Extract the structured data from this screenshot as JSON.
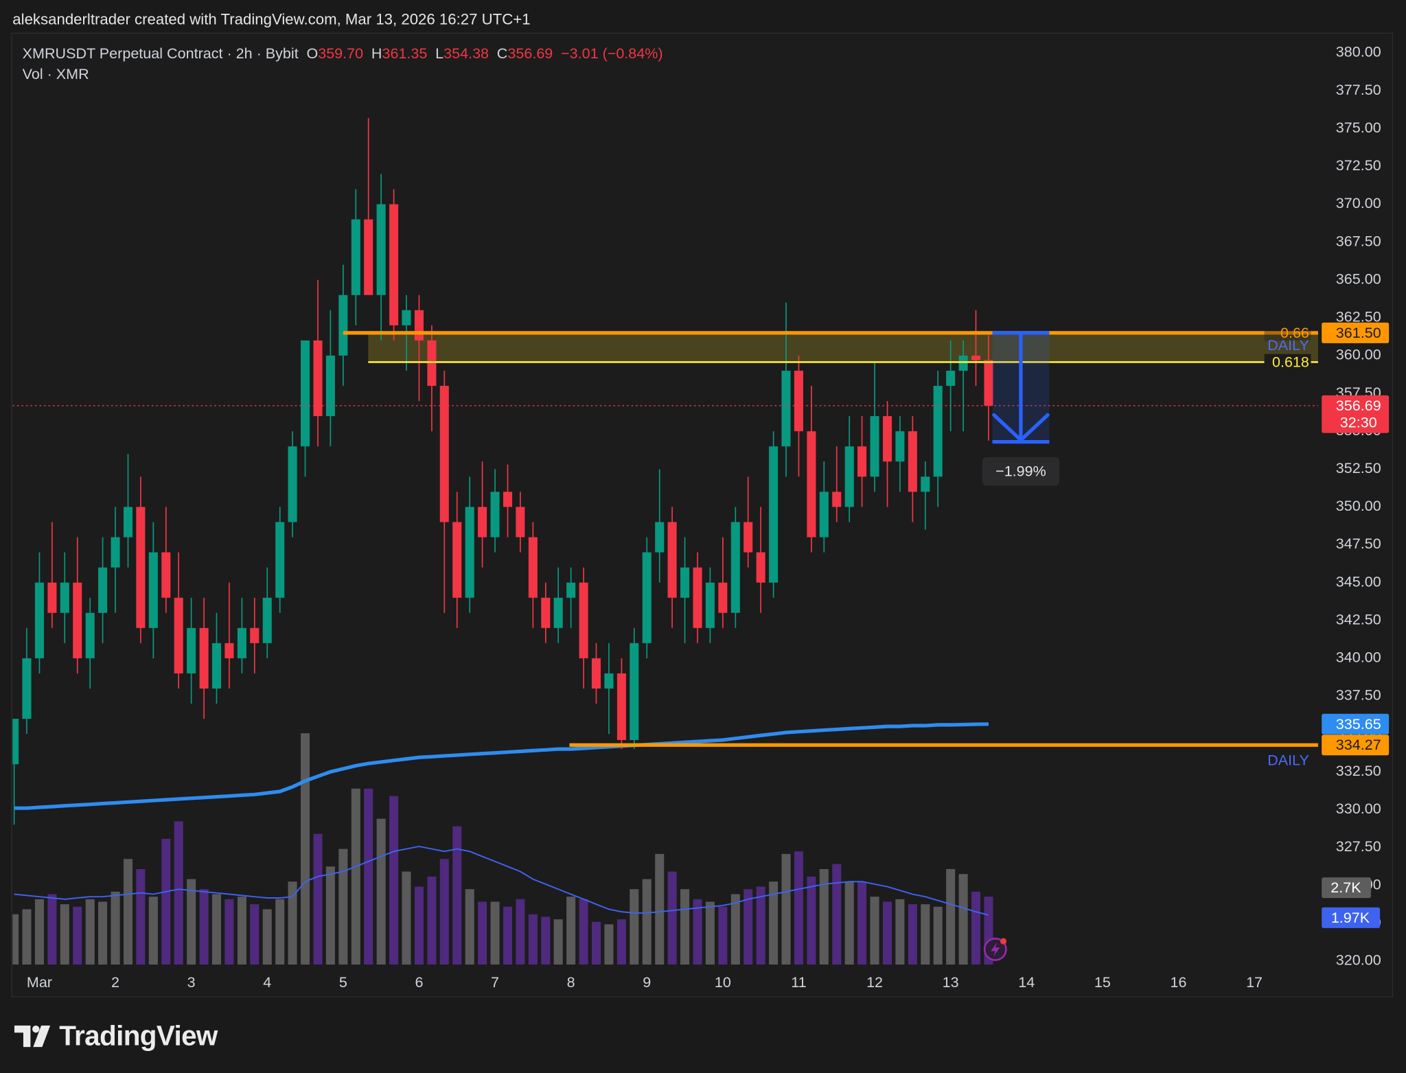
{
  "header": "aleksanderltrader created with TradingView.com, Mar 13, 2026 16:27 UTC+1",
  "footer": "TradingView",
  "chart_data": {
    "type": "candlestick",
    "legend": {
      "symbol": "XMRUSDT Perpetual Contract · 2h · Bybit",
      "items": [
        {
          "key": "O",
          "value": {
            "value": 359.7,
            "label": "359.70"
          }
        },
        {
          "key": "H",
          "value": {
            "value": 361.35,
            "label": "361.35"
          }
        },
        {
          "key": "L",
          "value": {
            "value": 354.38,
            "label": "354.38"
          }
        },
        {
          "key": "C",
          "value": {
            "value": 356.69,
            "label": "356.69"
          }
        }
      ],
      "change": "−3.01 (−0.84%)",
      "volume_title": "Vol · XMR"
    },
    "xlim": [
      0.646,
      17.84
    ],
    "ylim": [
      320,
      380
    ],
    "grid": false,
    "xticks": [
      {
        "value": 1,
        "label": "Mar"
      },
      2,
      3,
      4,
      5,
      6,
      7,
      8,
      9,
      10,
      11,
      12,
      13,
      14,
      15,
      16,
      17
    ],
    "yticks": [
      {
        "value": 320,
        "label": "320.00"
      },
      {
        "value": 322.5,
        "label": "322.50"
      },
      {
        "value": 325,
        "label": "325.00"
      },
      {
        "value": 327.5,
        "label": "327.50"
      },
      {
        "value": 330,
        "label": "330.00"
      },
      {
        "value": 332.5,
        "label": "332.50"
      },
      {
        "value": 335,
        "label": "335.00"
      },
      {
        "value": 337.5,
        "label": "337.50"
      },
      {
        "value": 340,
        "label": "340.00"
      },
      {
        "value": 342.5,
        "label": "342.50"
      },
      {
        "value": 345,
        "label": "345.00"
      },
      {
        "value": 347.5,
        "label": "347.50"
      },
      {
        "value": 350,
        "label": "350.00"
      },
      {
        "value": 352.5,
        "label": "352.50"
      },
      {
        "value": 355,
        "label": "355.00"
      },
      {
        "value": 357.5,
        "label": "357.50"
      },
      {
        "value": 360,
        "label": "360.00"
      },
      {
        "value": 362.5,
        "label": "362.50"
      },
      {
        "value": 365,
        "label": "365.00"
      },
      {
        "value": 367.5,
        "label": "367.50"
      },
      {
        "value": 370,
        "label": "370.00"
      },
      {
        "value": 372.5,
        "label": "372.50"
      },
      {
        "value": 375,
        "label": "375.00"
      },
      {
        "value": 377.5,
        "label": "377.50"
      },
      {
        "value": 380,
        "label": "380.00"
      }
    ],
    "up_color": "#089981",
    "down_color": "#f23645",
    "candles": {
      "x": [
        0.667,
        0.833,
        1,
        1.167,
        1.333,
        1.5,
        1.667,
        1.833,
        2,
        2.167,
        2.333,
        2.5,
        2.667,
        2.833,
        3,
        3.167,
        3.333,
        3.5,
        3.667,
        3.833,
        4,
        4.167,
        4.333,
        4.5,
        4.667,
        4.833,
        5,
        5.167,
        5.333,
        5.5,
        5.667,
        5.833,
        6,
        6.167,
        6.333,
        6.5,
        6.667,
        6.833,
        7,
        7.167,
        7.333,
        7.5,
        7.667,
        7.833,
        8,
        8.167,
        8.333,
        8.5,
        8.667,
        8.833,
        9,
        9.167,
        9.333,
        9.5,
        9.667,
        9.833,
        10,
        10.167,
        10.333,
        10.5,
        10.667,
        10.833,
        11,
        11.167,
        11.333,
        11.5,
        11.667,
        11.833,
        12,
        12.167,
        12.333,
        12.5,
        12.667,
        12.833,
        13,
        13.167,
        13.333,
        13.5
      ],
      "open": [
        333,
        336,
        340,
        345,
        343,
        345,
        340,
        343,
        346,
        348,
        350,
        342,
        347,
        344,
        339,
        342,
        338,
        341,
        340,
        342,
        341,
        344,
        349,
        354,
        361,
        356,
        360,
        364,
        369,
        364,
        370,
        362,
        363,
        361,
        358,
        349,
        344,
        350,
        348,
        351,
        350,
        348,
        344,
        342,
        344,
        345,
        340,
        338,
        339,
        334.6,
        341,
        347,
        349,
        344,
        346,
        342,
        345,
        343,
        349,
        347,
        345,
        354,
        359,
        355,
        348,
        351,
        350,
        354,
        352,
        356,
        353,
        355,
        351,
        352,
        358,
        359,
        360,
        359.7
      ],
      "high": [
        336,
        342,
        347,
        349,
        347,
        348,
        344,
        348,
        350,
        353.5,
        352,
        349,
        350,
        347,
        344,
        344,
        343,
        345,
        344,
        344,
        346,
        350,
        355,
        361,
        365,
        363,
        366,
        371,
        375.7,
        372,
        371,
        364,
        364,
        362,
        359,
        351,
        352,
        353,
        352.5,
        352.8,
        351,
        349,
        345,
        346,
        346,
        346,
        341,
        341,
        340,
        342,
        348,
        352.5,
        350,
        348,
        347,
        346,
        348,
        350,
        352,
        350,
        355,
        363.5,
        360,
        358,
        353,
        354,
        356,
        356,
        359.5,
        357,
        356,
        356,
        353,
        359,
        361,
        361,
        363,
        361.35
      ],
      "low": [
        329,
        335,
        339,
        342,
        341,
        339,
        338,
        341,
        343,
        346,
        341,
        340,
        343,
        338,
        337,
        336,
        337,
        338,
        339,
        339,
        340,
        343,
        348,
        352,
        354,
        354,
        358,
        362,
        365,
        361,
        361,
        359,
        357,
        355,
        343,
        342,
        343,
        346,
        347,
        348,
        347,
        342,
        341,
        341,
        342,
        338,
        337,
        335,
        334,
        334,
        340,
        345,
        342,
        341,
        341,
        341,
        342,
        342,
        346,
        343,
        344,
        352,
        352,
        347,
        347,
        349,
        349,
        350,
        351,
        350,
        351,
        349,
        348.5,
        350,
        355,
        355,
        358,
        354.38
      ],
      "close": [
        336,
        340,
        345,
        343,
        345,
        340,
        343,
        346,
        348,
        350,
        342,
        347,
        344,
        339,
        342,
        338,
        341,
        340,
        342,
        341,
        344,
        349,
        354,
        361,
        356,
        360,
        364,
        369,
        364,
        370,
        362,
        363,
        361,
        358,
        349,
        344,
        350,
        348,
        351,
        350,
        348,
        344,
        342,
        344,
        345,
        340,
        338,
        339,
        334.6,
        341,
        347,
        349,
        344,
        346,
        342,
        345,
        343,
        349,
        347,
        345,
        354,
        359,
        355,
        348,
        351,
        350,
        354,
        352,
        356,
        353,
        355,
        351,
        352,
        358,
        359,
        360,
        359.7,
        356.69
      ]
    },
    "ma": {
      "color": "#2f8cf0",
      "last_label_color": "#2f8cf0",
      "values": [
        330.1,
        330.1,
        330.15,
        330.2,
        330.25,
        330.3,
        330.35,
        330.4,
        330.45,
        330.5,
        330.55,
        330.6,
        330.65,
        330.7,
        330.75,
        330.8,
        330.85,
        330.9,
        330.95,
        331,
        331.1,
        331.2,
        331.5,
        331.9,
        332.2,
        332.5,
        332.7,
        332.9,
        333.05,
        333.15,
        333.25,
        333.35,
        333.45,
        333.5,
        333.55,
        333.6,
        333.65,
        333.7,
        333.75,
        333.8,
        333.85,
        333.9,
        333.95,
        334,
        334,
        334.05,
        334.1,
        334.15,
        334.2,
        334.25,
        334.3,
        334.35,
        334.4,
        334.45,
        334.5,
        334.55,
        334.6,
        334.7,
        334.8,
        334.9,
        335,
        335.1,
        335.15,
        335.2,
        335.25,
        335.3,
        335.35,
        335.4,
        335.45,
        335.5,
        335.5,
        335.55,
        335.55,
        335.6,
        335.6,
        335.62,
        335.64,
        335.65
      ]
    },
    "volume": {
      "up_color": "#5a5a5a",
      "down_color": "#4f2a7e",
      "ma_color": "#3d63f0",
      "last_label": "2.7K",
      "ma_last_label": "1.97K",
      "values": [
        2000,
        2200,
        2600,
        2800,
        2400,
        2300,
        2600,
        2500,
        2900,
        4200,
        3800,
        2700,
        5000,
        5700,
        3400,
        3000,
        2800,
        2600,
        2700,
        2400,
        2200,
        2600,
        3300,
        9200,
        5200,
        3900,
        4600,
        7000,
        7000,
        5800,
        6700,
        3700,
        3100,
        3500,
        4200,
        5500,
        3000,
        2500,
        2500,
        2300,
        2600,
        2000,
        1900,
        1800,
        2700,
        2600,
        1700,
        1600,
        1800,
        3000,
        3400,
        4400,
        3700,
        3000,
        2600,
        2500,
        2300,
        2800,
        3000,
        3100,
        3300,
        4400,
        4500,
        3500,
        3800,
        4000,
        3300,
        3300,
        2700,
        2500,
        2600,
        2400,
        2400,
        2300,
        3800,
        3600,
        2900,
        2700
      ],
      "ma": [
        2800,
        2750,
        2700,
        2650,
        2600,
        2650,
        2700,
        2700,
        2750,
        2800,
        2850,
        2800,
        2900,
        3000,
        2950,
        2900,
        2850,
        2800,
        2750,
        2700,
        2650,
        2650,
        2700,
        3300,
        3500,
        3600,
        3700,
        3900,
        4100,
        4300,
        4500,
        4600,
        4700,
        4600,
        4500,
        4600,
        4500,
        4300,
        4100,
        3900,
        3700,
        3400,
        3200,
        3000,
        2800,
        2600,
        2400,
        2200,
        2100,
        2050,
        2050,
        2100,
        2150,
        2200,
        2250,
        2300,
        2350,
        2450,
        2600,
        2700,
        2800,
        2900,
        3000,
        3100,
        3200,
        3250,
        3300,
        3300,
        3200,
        3100,
        2950,
        2800,
        2700,
        2550,
        2400,
        2250,
        2100,
        1970
      ]
    },
    "levels": [
      {
        "price": 361.5,
        "price_label": "361.50",
        "x_start": 5.0,
        "color": "#ff9800",
        "fib_label": "0.66",
        "tag": "DAILY"
      },
      {
        "price": 359.57,
        "x_start": 5.33,
        "color": "#ffeb3b",
        "fib_label": "0.618"
      },
      {
        "price": 334.27,
        "price_label": "334.27",
        "x_start": 7.98,
        "color": "#ff9800",
        "tag": "DAILY"
      }
    ],
    "zone_color": "rgba(190,170,40,0.28)",
    "tag_color": "#4a6cf7",
    "last": {
      "price": 356.69,
      "countdown": "32:30",
      "color": "#f23645"
    },
    "measure": {
      "x_start": 13.55,
      "x_end": 14.3,
      "from": 361.5,
      "to": 354.3,
      "change": -1.99,
      "change_label": "−1.99%",
      "color": "#2962ff"
    }
  }
}
